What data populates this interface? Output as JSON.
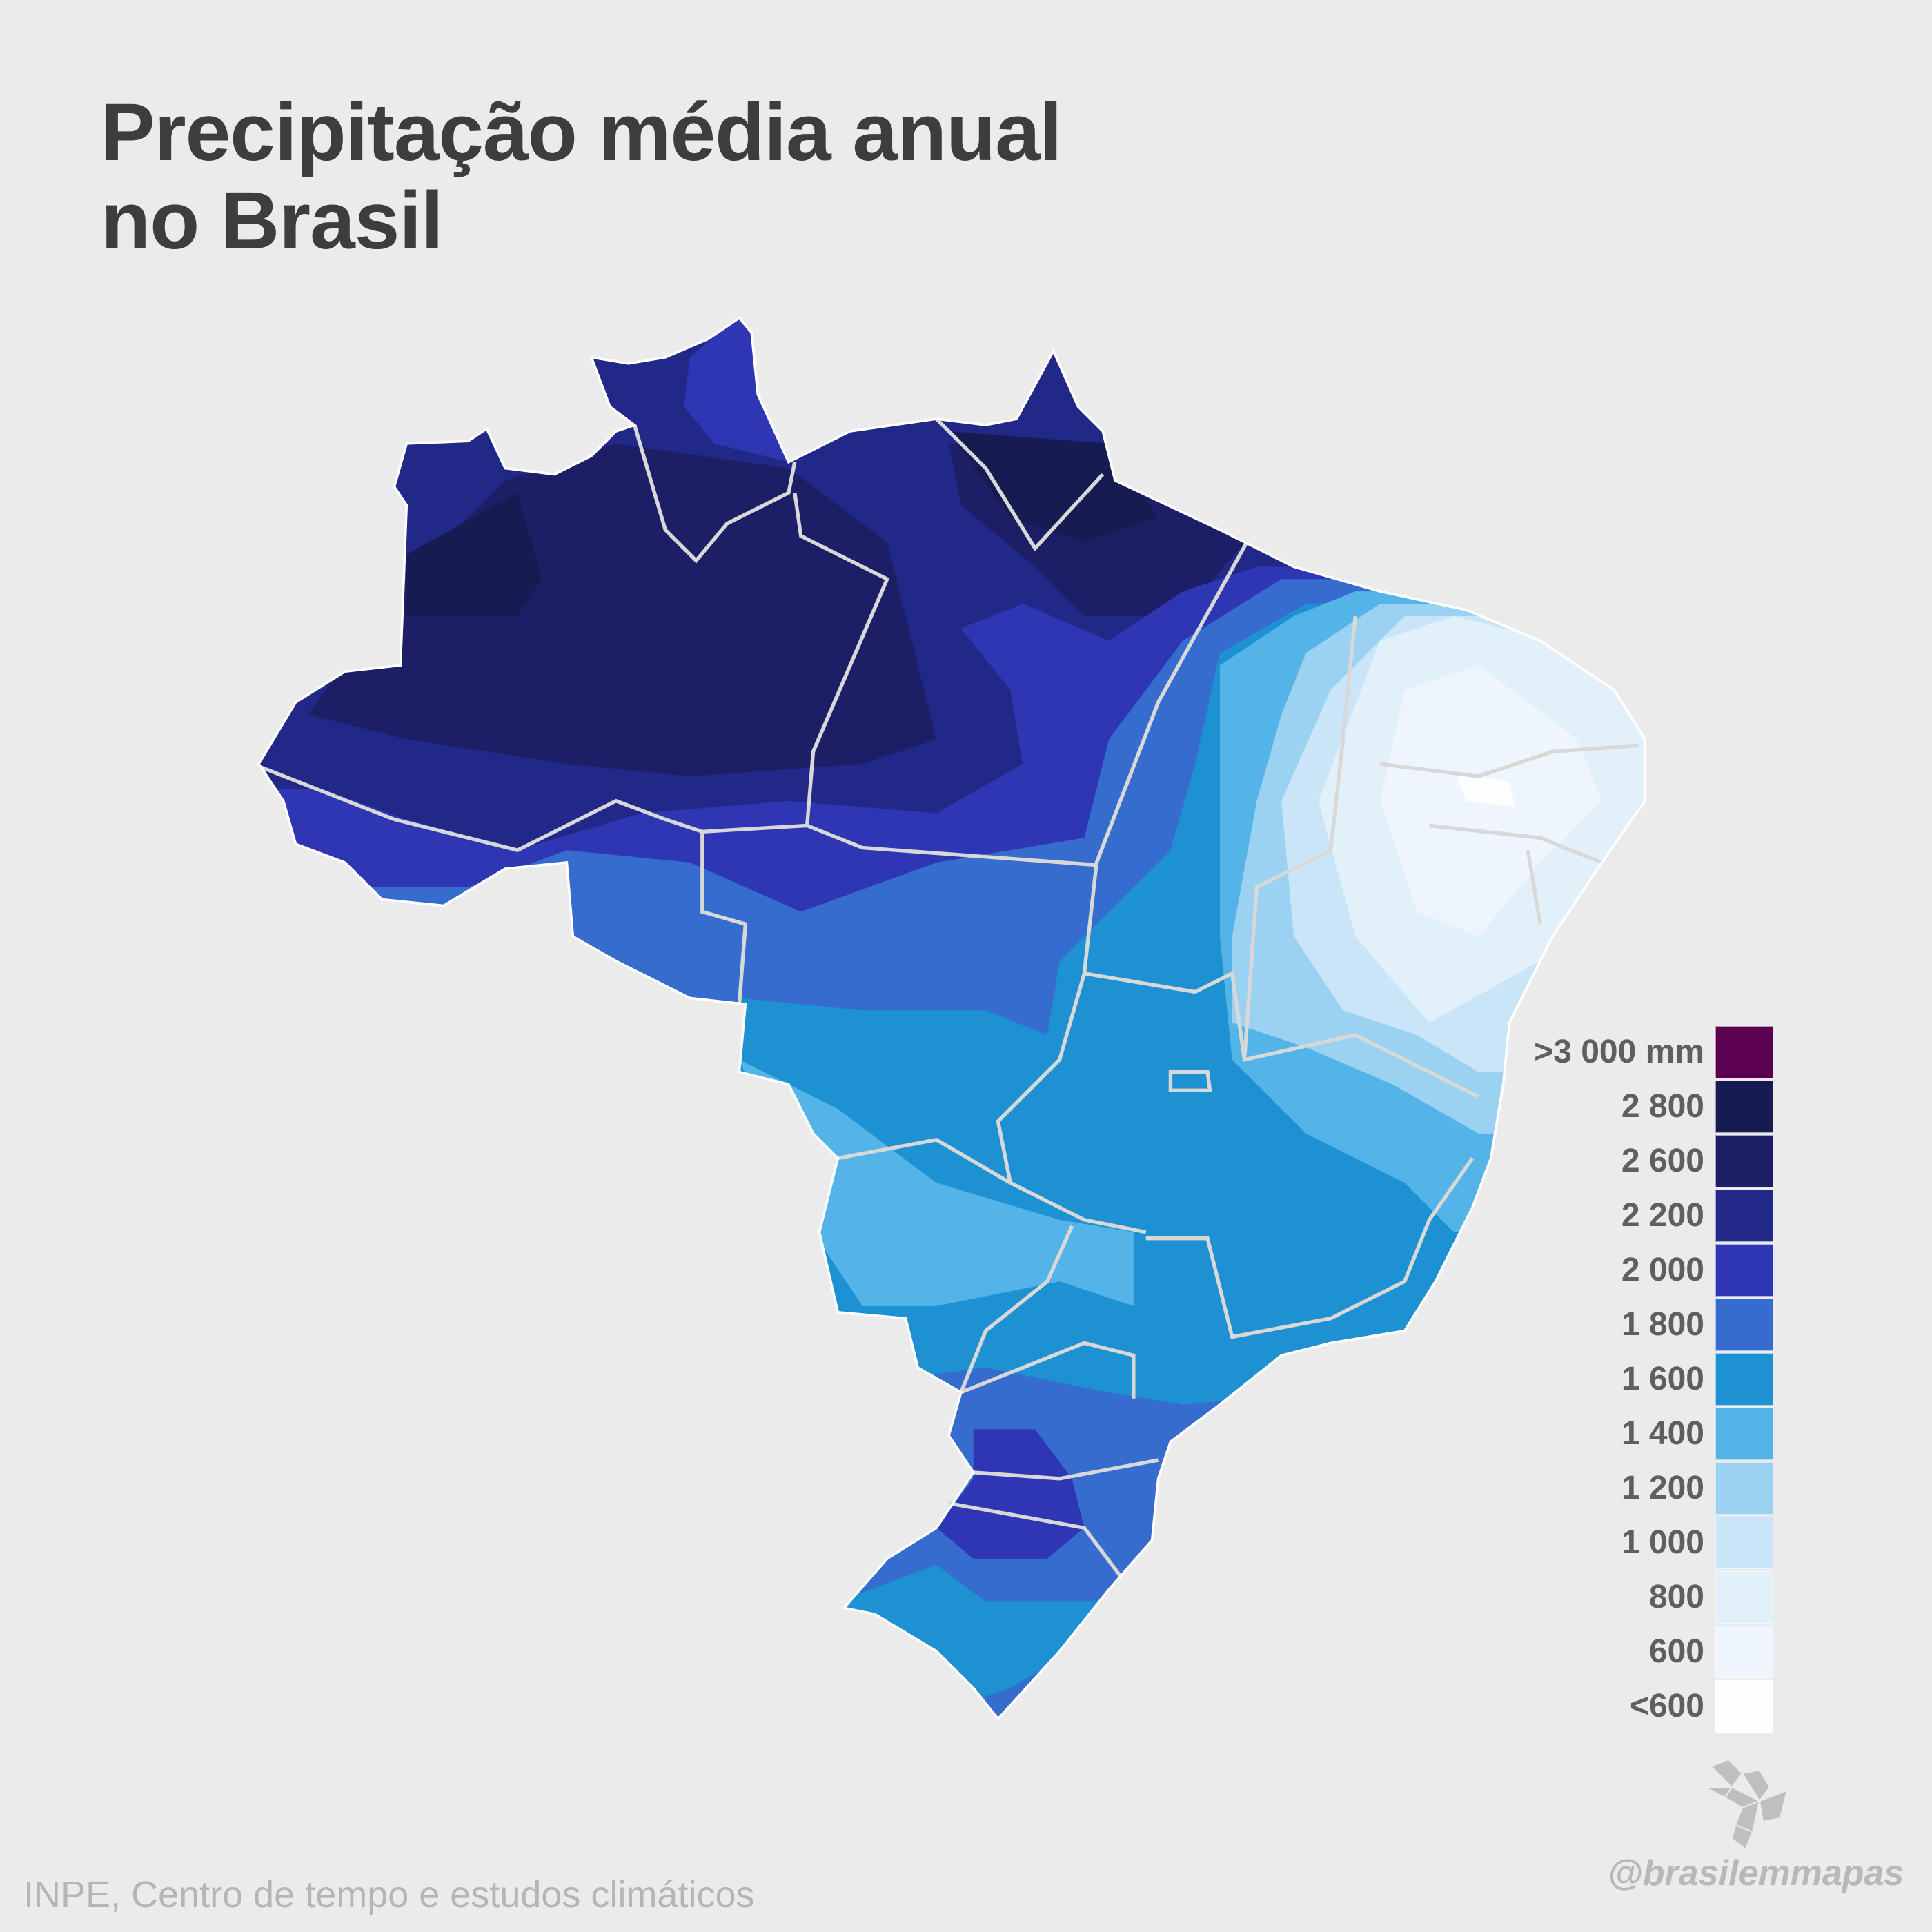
{
  "title_line1": "Precipitação média anual",
  "title_line2": "no Brasil",
  "source": "INPE, Centro de tempo e estudos climáticos",
  "handle": "@brasilemmapas",
  "logo_name": "brasilemmapas-logo",
  "chart_data": {
    "type": "choropleth",
    "title": "Precipitação média anual no Brasil",
    "unit": "mm",
    "legend_placement": "bottom-right",
    "legend": [
      {
        "label": ">3 000 mm",
        "color": "#5c0052"
      },
      {
        "label": "2 800",
        "color": "#161b52"
      },
      {
        "label": "2 600",
        "color": "#1c1f66"
      },
      {
        "label": "2 200",
        "color": "#222887"
      },
      {
        "label": "2 000",
        "color": "#2e36b4"
      },
      {
        "label": "1 800",
        "color": "#366cce"
      },
      {
        "label": "1 600",
        "color": "#1d91d2"
      },
      {
        "label": "1 400",
        "color": "#54b4e8"
      },
      {
        "label": "1 200",
        "color": "#9cd2f1"
      },
      {
        "label": "1 000",
        "color": "#c9e5f7"
      },
      {
        "label": "800",
        "color": "#e2f0f9"
      },
      {
        "label": "600",
        "color": "#eef5fc"
      },
      {
        "label": "<600",
        "color": "#fdfeff"
      }
    ]
  }
}
